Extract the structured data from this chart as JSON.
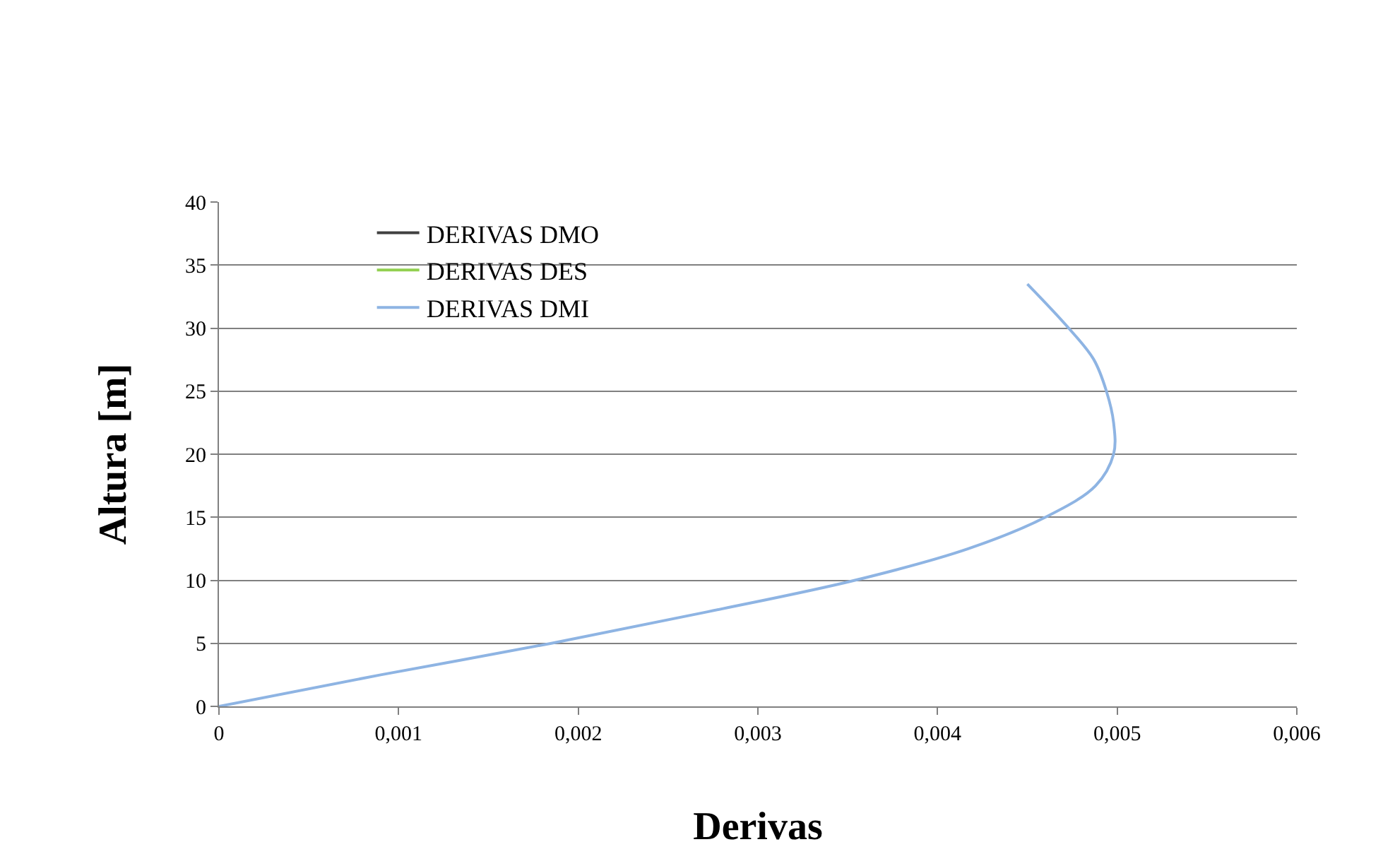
{
  "chart_data": {
    "type": "line",
    "xlabel": "Derivas",
    "ylabel": "Altura [m]",
    "xlim": [
      0,
      0.006
    ],
    "xticks": [
      0,
      {
        "value": 0.001,
        "label": "0,001"
      },
      {
        "value": 0.002,
        "label": "0,002"
      },
      {
        "value": 0.003,
        "label": "0,003"
      },
      {
        "value": 0.004,
        "label": "0,004"
      },
      {
        "value": 0.005,
        "label": "0,005"
      },
      {
        "value": 0.006,
        "label": "0,006"
      }
    ],
    "ylim": [
      0,
      40
    ],
    "yticks": [
      0,
      5,
      10,
      15,
      20,
      25,
      30,
      35,
      40
    ],
    "grid": "y",
    "legend": "top left",
    "marker": "none",
    "line_style": "solid",
    "series": [
      {
        "name": "DERIVAS DMO",
        "color": "#404040"
      },
      {
        "name": "DERIVAS DES",
        "color": "#92d050"
      },
      {
        "name": "DERIVAS DMI",
        "color": "#8eb4e3",
        "x": [
          0,
          0.0009,
          0.00185,
          0.00272,
          0.00354,
          0.00417,
          0.0046,
          0.00488,
          0.00498,
          0.00498,
          0.00494,
          0.00487,
          0.00473,
          0.0045
        ],
        "values": [
          0,
          2.5,
          5,
          7.5,
          10,
          12.5,
          15,
          17.5,
          20,
          22.5,
          25,
          27.5,
          30,
          33.5
        ]
      }
    ]
  }
}
